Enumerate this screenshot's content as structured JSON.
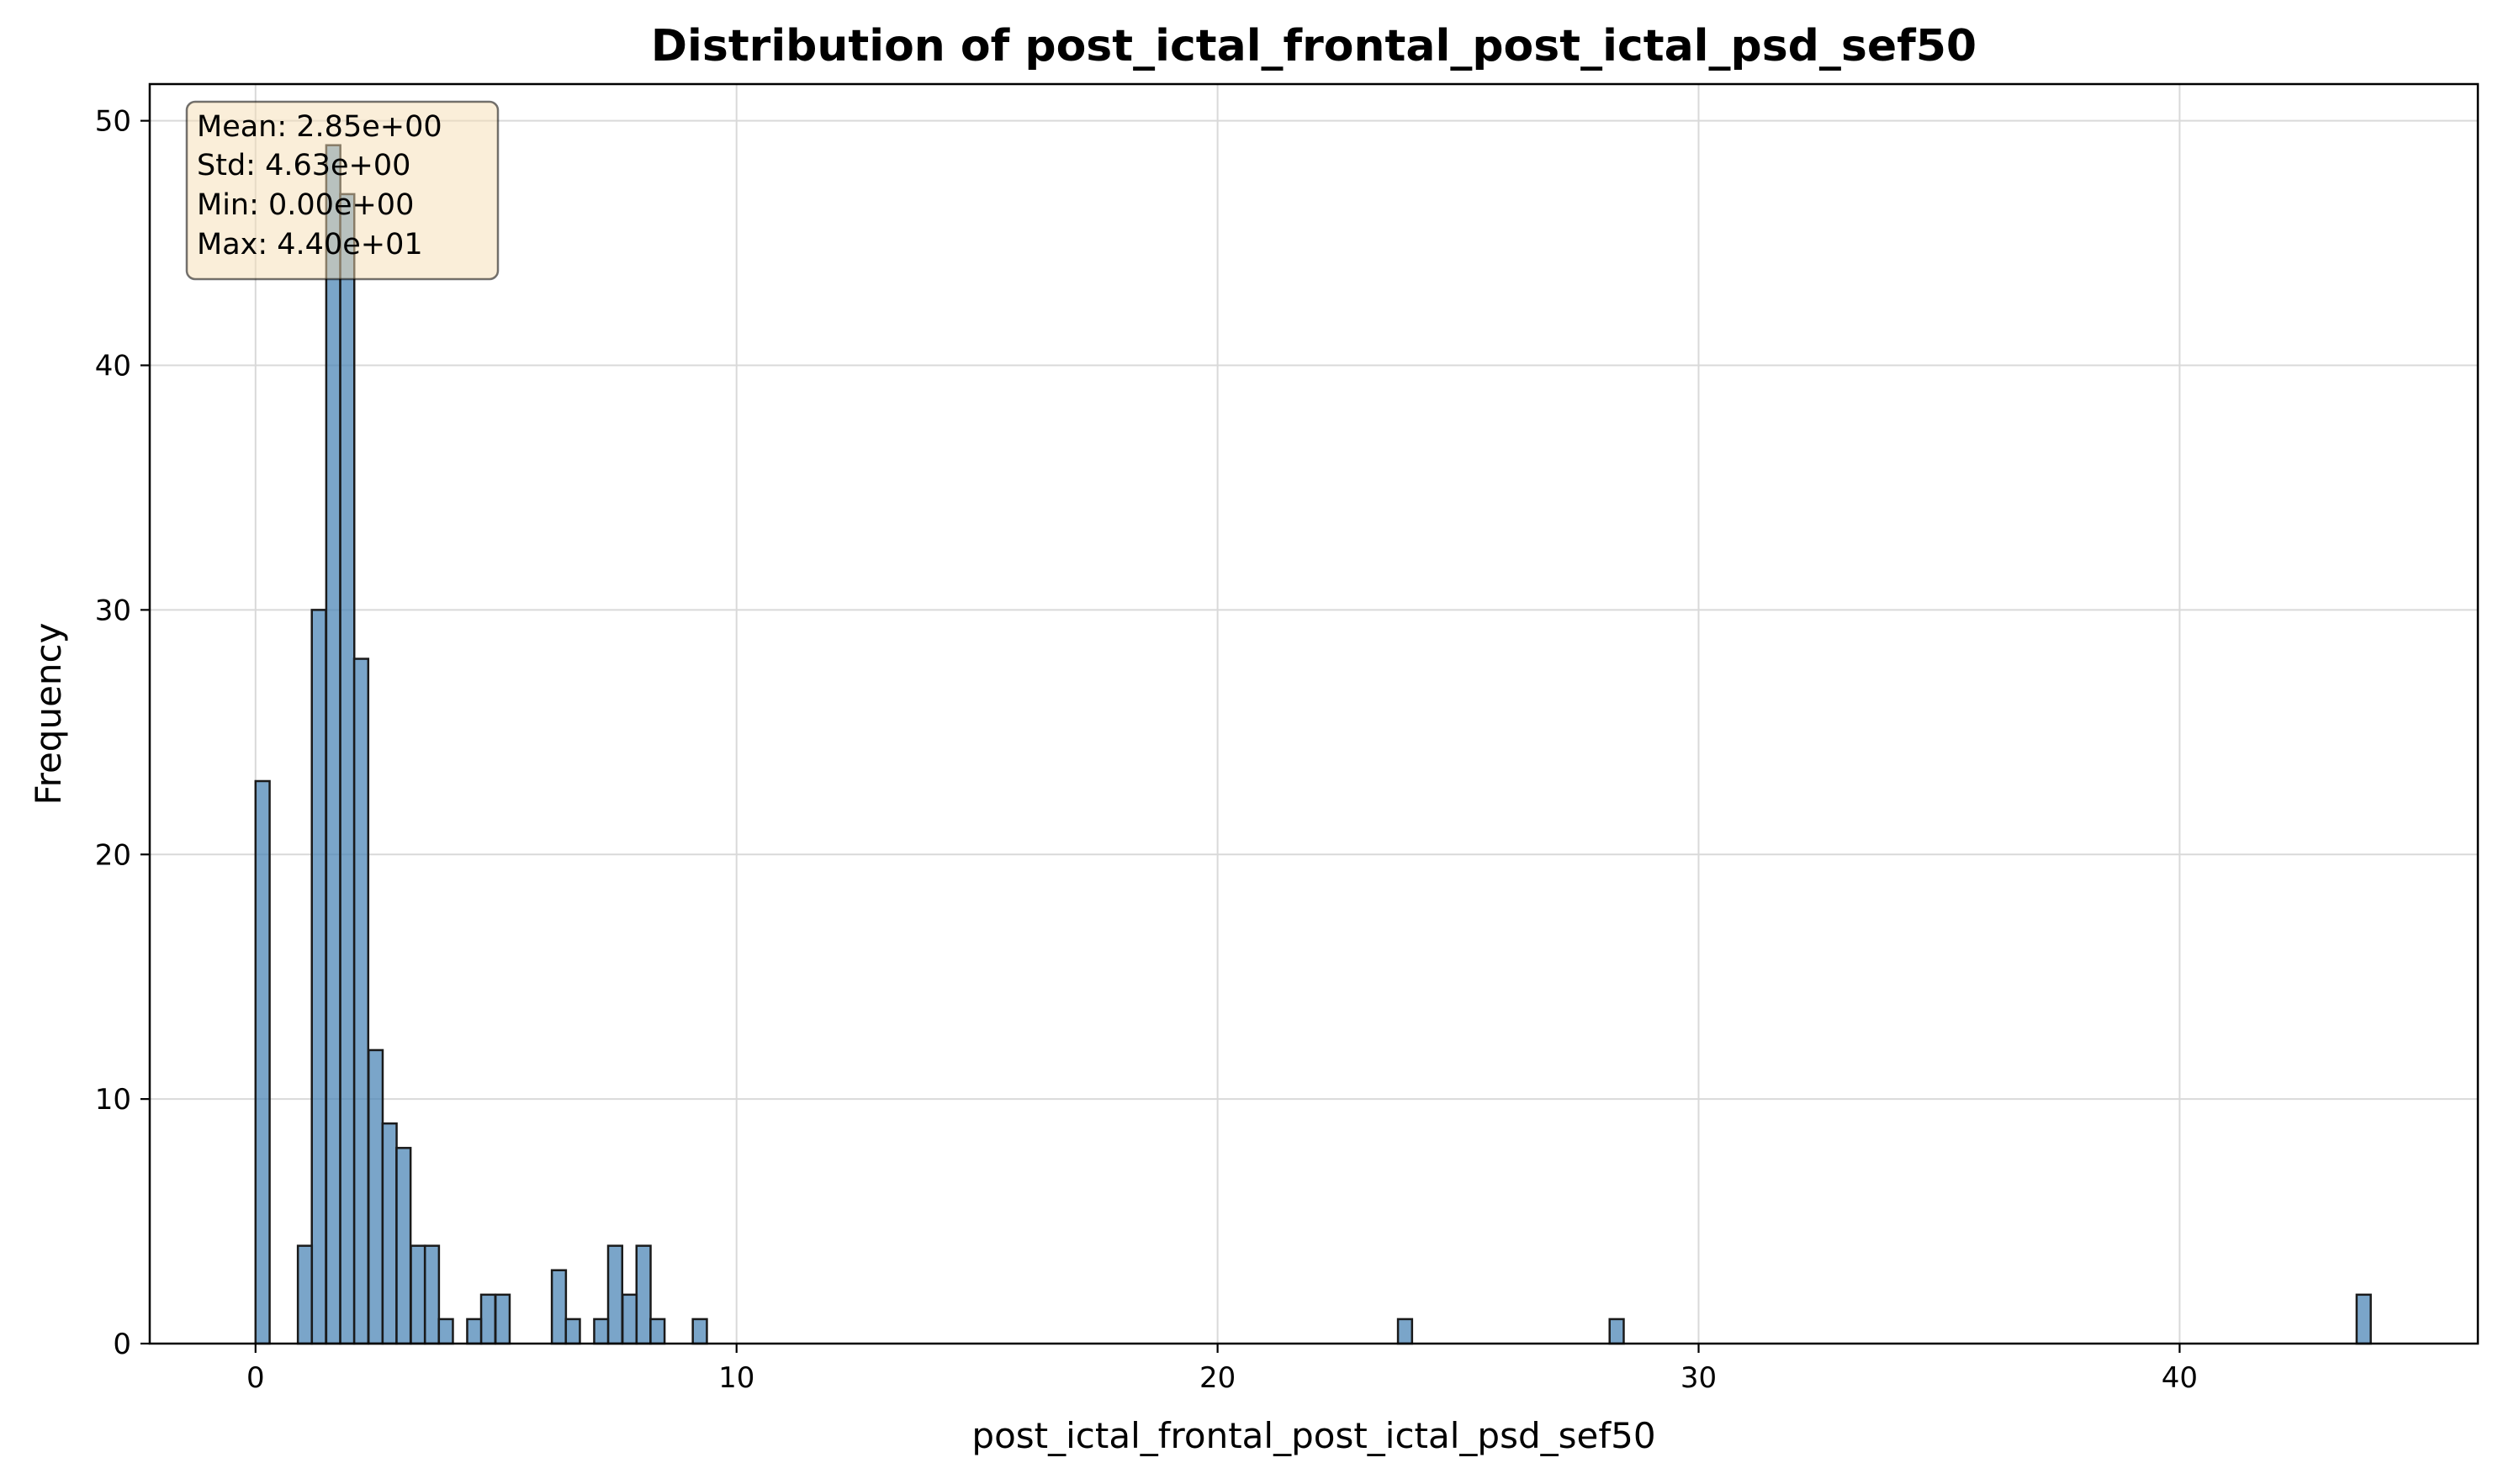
{
  "chart_data": {
    "type": "bar",
    "title": "Distribution of post_ictal_frontal_post_ictal_psd_sef50",
    "xlabel": "post_ictal_frontal_post_ictal_psd_sef50",
    "ylabel": "Frequency",
    "xlim": [
      -2.2,
      46.2
    ],
    "ylim": [
      0,
      51.5
    ],
    "xticks": [
      0,
      10,
      20,
      30,
      40
    ],
    "yticks": [
      0,
      10,
      20,
      30,
      40,
      50
    ],
    "grid": true,
    "bin_width": 0.293,
    "bars": [
      {
        "x": 0.0,
        "count": 23
      },
      {
        "x": 0.88,
        "count": 4
      },
      {
        "x": 1.17,
        "count": 30
      },
      {
        "x": 1.47,
        "count": 49
      },
      {
        "x": 1.76,
        "count": 47
      },
      {
        "x": 2.05,
        "count": 28
      },
      {
        "x": 2.35,
        "count": 12
      },
      {
        "x": 2.64,
        "count": 9
      },
      {
        "x": 2.93,
        "count": 8
      },
      {
        "x": 3.23,
        "count": 4
      },
      {
        "x": 3.52,
        "count": 4
      },
      {
        "x": 3.81,
        "count": 1
      },
      {
        "x": 4.4,
        "count": 1
      },
      {
        "x": 4.69,
        "count": 2
      },
      {
        "x": 4.99,
        "count": 2
      },
      {
        "x": 6.16,
        "count": 3
      },
      {
        "x": 6.45,
        "count": 1
      },
      {
        "x": 7.04,
        "count": 1
      },
      {
        "x": 7.33,
        "count": 4
      },
      {
        "x": 7.63,
        "count": 2
      },
      {
        "x": 7.92,
        "count": 4
      },
      {
        "x": 8.21,
        "count": 1
      },
      {
        "x": 9.09,
        "count": 1
      },
      {
        "x": 23.75,
        "count": 1
      },
      {
        "x": 28.15,
        "count": 1
      },
      {
        "x": 43.68,
        "count": 2
      }
    ],
    "bar_color": "#4682b4",
    "stats_box": [
      "Mean: 2.85e+00",
      "Std: 4.63e+00",
      "Min: 0.00e+00",
      "Max: 4.40e+01"
    ]
  }
}
